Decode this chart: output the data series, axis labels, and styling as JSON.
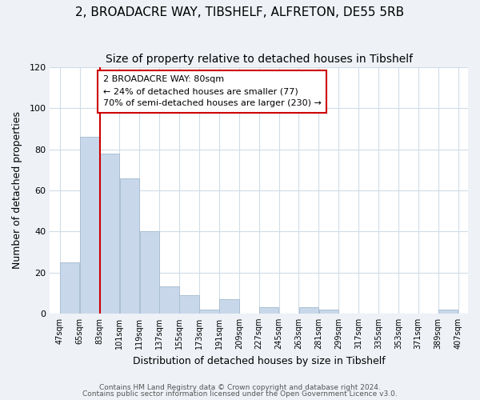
{
  "title": "2, BROADACRE WAY, TIBSHELF, ALFRETON, DE55 5RB",
  "subtitle": "Size of property relative to detached houses in Tibshelf",
  "xlabel": "Distribution of detached houses by size in Tibshelf",
  "ylabel": "Number of detached properties",
  "bar_color": "#c8d8ea",
  "bar_edgecolor": "#aabfd4",
  "bar_left_edges": [
    47,
    65,
    83,
    101,
    119,
    137,
    155,
    173,
    191,
    209,
    227,
    245,
    263,
    281,
    299,
    317,
    335,
    353,
    371,
    389
  ],
  "bar_heights": [
    25,
    86,
    78,
    66,
    40,
    13,
    9,
    2,
    7,
    0,
    3,
    0,
    3,
    2,
    0,
    0,
    0,
    0,
    0,
    2
  ],
  "bin_width": 18,
  "xtick_labels": [
    "47sqm",
    "65sqm",
    "83sqm",
    "101sqm",
    "119sqm",
    "137sqm",
    "155sqm",
    "173sqm",
    "191sqm",
    "209sqm",
    "227sqm",
    "245sqm",
    "263sqm",
    "281sqm",
    "299sqm",
    "317sqm",
    "335sqm",
    "353sqm",
    "371sqm",
    "389sqm",
    "407sqm"
  ],
  "xtick_positions": [
    47,
    65,
    83,
    101,
    119,
    137,
    155,
    173,
    191,
    209,
    227,
    245,
    263,
    281,
    299,
    317,
    335,
    353,
    371,
    389,
    407
  ],
  "ylim": [
    0,
    120
  ],
  "yticks": [
    0,
    20,
    40,
    60,
    80,
    100,
    120
  ],
  "xlim_min": 38,
  "xlim_max": 416,
  "vline_x": 83,
  "vline_color": "#cc0000",
  "annotation_title": "2 BROADACRE WAY: 80sqm",
  "annotation_line1": "← 24% of detached houses are smaller (77)",
  "annotation_line2": "70% of semi-detached houses are larger (230) →",
  "annotation_box_color": "#cc0000",
  "footer_line1": "Contains HM Land Registry data © Crown copyright and database right 2024.",
  "footer_line2": "Contains public sector information licensed under the Open Government Licence v3.0.",
  "background_color": "#eef2f7",
  "plot_bg_color": "#ffffff",
  "title_fontsize": 11,
  "subtitle_fontsize": 10,
  "grid_color": "#d0dce8"
}
